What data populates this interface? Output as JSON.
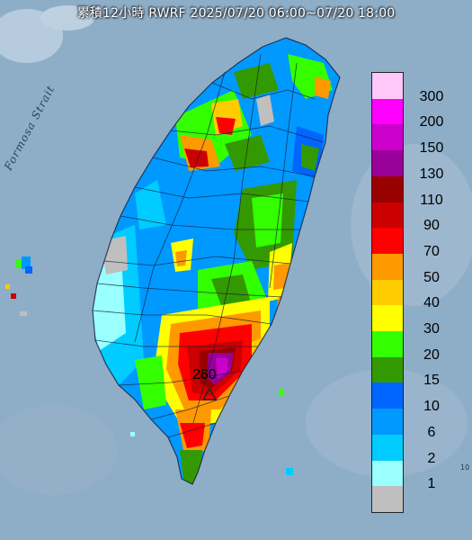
{
  "title": "累積12小時 RWRF 2025/07/20 06:00~07/20 18:00",
  "strait_label": "Formosa Strait",
  "peak_value": "260",
  "corner_mark": "10",
  "legend": {
    "labels": [
      "300",
      "200",
      "150",
      "130",
      "110",
      "90",
      "70",
      "50",
      "40",
      "30",
      "20",
      "15",
      "10",
      "6",
      "2",
      "1"
    ],
    "colors": [
      "#ffc8f8",
      "#ff00ff",
      "#cc00cc",
      "#990099",
      "#990000",
      "#cc0000",
      "#ff0000",
      "#ff9900",
      "#ffcc00",
      "#ffff00",
      "#33ff00",
      "#339900",
      "#0066ff",
      "#0099ff",
      "#00ccff",
      "#99ffff",
      "#bfbfbf"
    ]
  }
}
